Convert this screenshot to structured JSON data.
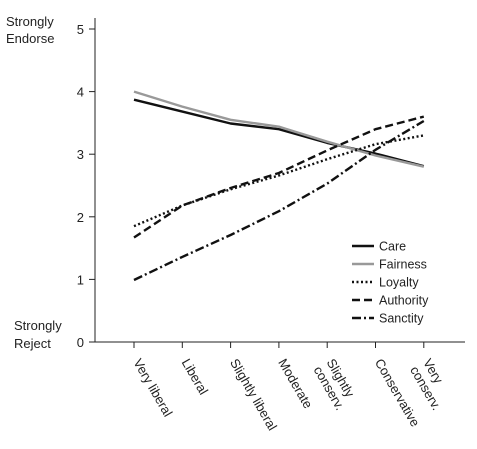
{
  "chart_data": {
    "type": "line",
    "title": "",
    "xlabel": "",
    "ylabel": "",
    "ylim": [
      0,
      5.25
    ],
    "yticks": [
      0,
      1,
      2,
      3,
      4,
      5
    ],
    "top_label": [
      "Strongly",
      "Endorse"
    ],
    "bottom_label": [
      "Strongly",
      "Reject"
    ],
    "categories": [
      [
        "Very liberal"
      ],
      [
        "Liberal"
      ],
      [
        "Slightly liberal"
      ],
      [
        "Moderate"
      ],
      [
        "Slightly",
        "conserv."
      ],
      [
        "Conservative"
      ],
      [
        "Very",
        "conserv."
      ]
    ],
    "legend_position": "right",
    "series": [
      {
        "name": "Care",
        "values": [
          3.87,
          3.68,
          3.49,
          3.4,
          3.18,
          3.01,
          2.81
        ],
        "color": "#111111",
        "dash": "",
        "width": 2.4
      },
      {
        "name": "Fairness",
        "values": [
          4.0,
          3.76,
          3.55,
          3.44,
          3.2,
          2.98,
          2.8
        ],
        "color": "#999999",
        "dash": "",
        "width": 2.4
      },
      {
        "name": "Loyalty",
        "values": [
          1.85,
          2.18,
          2.44,
          2.66,
          2.92,
          3.16,
          3.3
        ],
        "color": "#111111",
        "dash": "2,2.5",
        "width": 2.4
      },
      {
        "name": "Authority",
        "values": [
          1.67,
          2.18,
          2.46,
          2.7,
          3.06,
          3.4,
          3.6
        ],
        "color": "#111111",
        "dash": "8,4",
        "width": 2.4
      },
      {
        "name": "Sanctity",
        "values": [
          0.99,
          1.36,
          1.71,
          2.09,
          2.53,
          3.07,
          3.53
        ],
        "color": "#111111",
        "dash": "9,3,2,3",
        "width": 2.4
      }
    ]
  }
}
